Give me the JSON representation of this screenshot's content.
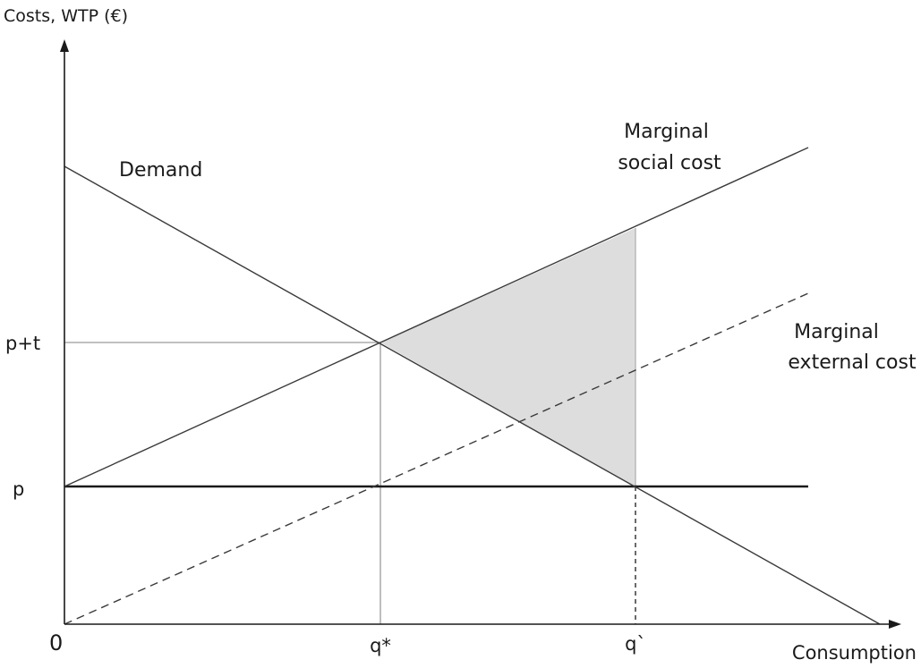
{
  "diagram": {
    "y_axis_label": "Costs, WTP (€)",
    "x_axis_label": "Consumption",
    "origin_label": "0",
    "y_ticks": {
      "p_plus_t": "p+t",
      "p": "p"
    },
    "x_ticks": {
      "q_star": "q*",
      "q_prime": "q`"
    },
    "curves": {
      "demand": "Demand",
      "marginal_social_cost": [
        "Marginal",
        "social cost"
      ],
      "marginal_external_cost": [
        "Marginal",
        "external cost"
      ]
    },
    "colors": {
      "line": "#3a3a3a",
      "thin_line": "#9a9a9a",
      "shaded_area": "#dddddd",
      "background": "#ffffff"
    }
  }
}
